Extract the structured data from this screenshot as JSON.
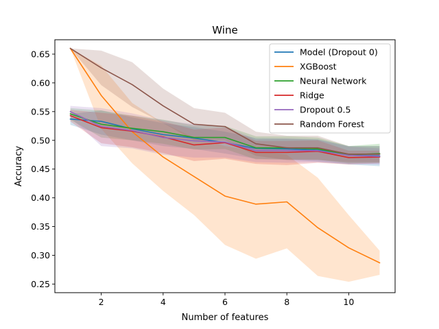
{
  "chart_data": {
    "type": "line",
    "title": "Wine",
    "xlabel": "Number of features",
    "ylabel": "Accuracy",
    "xlim": [
      0.5,
      11.5
    ],
    "ylim": [
      0.235,
      0.675
    ],
    "xticks": [
      2,
      4,
      6,
      8,
      10
    ],
    "yticks": [
      0.25,
      0.3,
      0.35,
      0.4,
      0.45,
      0.5,
      0.55,
      0.6,
      0.65
    ],
    "x": [
      1,
      2,
      3,
      4,
      5,
      6,
      7,
      8,
      9,
      10,
      11
    ],
    "legend_position": "upper right",
    "grid": false,
    "series": [
      {
        "name": "Model (Dropout 0)",
        "color": "#1f77b4",
        "values": [
          0.537,
          0.533,
          0.52,
          0.51,
          0.504,
          0.496,
          0.486,
          0.485,
          0.483,
          0.474,
          0.473
        ],
        "lower": [
          0.527,
          0.51,
          0.5,
          0.49,
          0.485,
          0.477,
          0.468,
          0.466,
          0.463,
          0.458,
          0.455
        ],
        "upper": [
          0.546,
          0.552,
          0.54,
          0.53,
          0.523,
          0.515,
          0.504,
          0.503,
          0.502,
          0.49,
          0.49
        ]
      },
      {
        "name": "XGBoost",
        "color": "#ff7f0e",
        "values": [
          0.66,
          0.578,
          0.515,
          0.471,
          0.437,
          0.403,
          0.389,
          0.393,
          0.348,
          0.313,
          0.287
        ],
        "lower": [
          0.66,
          0.52,
          0.46,
          0.412,
          0.37,
          0.318,
          0.294,
          0.312,
          0.264,
          0.254,
          0.266
        ],
        "upper": [
          0.66,
          0.63,
          0.565,
          0.53,
          0.505,
          0.49,
          0.481,
          0.475,
          0.435,
          0.37,
          0.308
        ]
      },
      {
        "name": "Neural Network",
        "color": "#2ca02c",
        "values": [
          0.546,
          0.528,
          0.521,
          0.515,
          0.505,
          0.505,
          0.487,
          0.487,
          0.485,
          0.475,
          0.477
        ],
        "lower": [
          0.536,
          0.505,
          0.5,
          0.494,
          0.484,
          0.485,
          0.467,
          0.467,
          0.466,
          0.46,
          0.461
        ],
        "upper": [
          0.556,
          0.552,
          0.543,
          0.536,
          0.526,
          0.525,
          0.507,
          0.507,
          0.505,
          0.49,
          0.494
        ]
      },
      {
        "name": "Ridge",
        "color": "#d62728",
        "values": [
          0.543,
          0.522,
          0.516,
          0.506,
          0.492,
          0.496,
          0.479,
          0.479,
          0.481,
          0.47,
          0.471
        ],
        "lower": [
          0.533,
          0.495,
          0.488,
          0.478,
          0.464,
          0.468,
          0.459,
          0.457,
          0.461,
          0.458,
          0.46
        ],
        "upper": [
          0.553,
          0.548,
          0.543,
          0.533,
          0.519,
          0.522,
          0.499,
          0.499,
          0.5,
          0.482,
          0.482
        ]
      },
      {
        "name": "Dropout 0.5",
        "color": "#9467bd",
        "values": [
          0.55,
          0.524,
          0.517,
          0.505,
          0.499,
          0.497,
          0.482,
          0.482,
          0.482,
          0.474,
          0.472
        ],
        "lower": [
          0.54,
          0.49,
          0.486,
          0.475,
          0.47,
          0.47,
          0.462,
          0.461,
          0.462,
          0.459,
          0.458
        ],
        "upper": [
          0.56,
          0.556,
          0.547,
          0.535,
          0.528,
          0.524,
          0.502,
          0.503,
          0.501,
          0.489,
          0.486
        ]
      },
      {
        "name": "Random Forest",
        "color": "#8c564b",
        "values": [
          0.66,
          0.626,
          0.597,
          0.56,
          0.528,
          0.524,
          0.494,
          0.487,
          0.487,
          0.476,
          0.476
        ],
        "lower": [
          0.66,
          0.596,
          0.558,
          0.53,
          0.5,
          0.5,
          0.473,
          0.466,
          0.466,
          0.462,
          0.462
        ],
        "upper": [
          0.66,
          0.656,
          0.636,
          0.59,
          0.556,
          0.548,
          0.515,
          0.508,
          0.508,
          0.49,
          0.49
        ]
      }
    ]
  }
}
